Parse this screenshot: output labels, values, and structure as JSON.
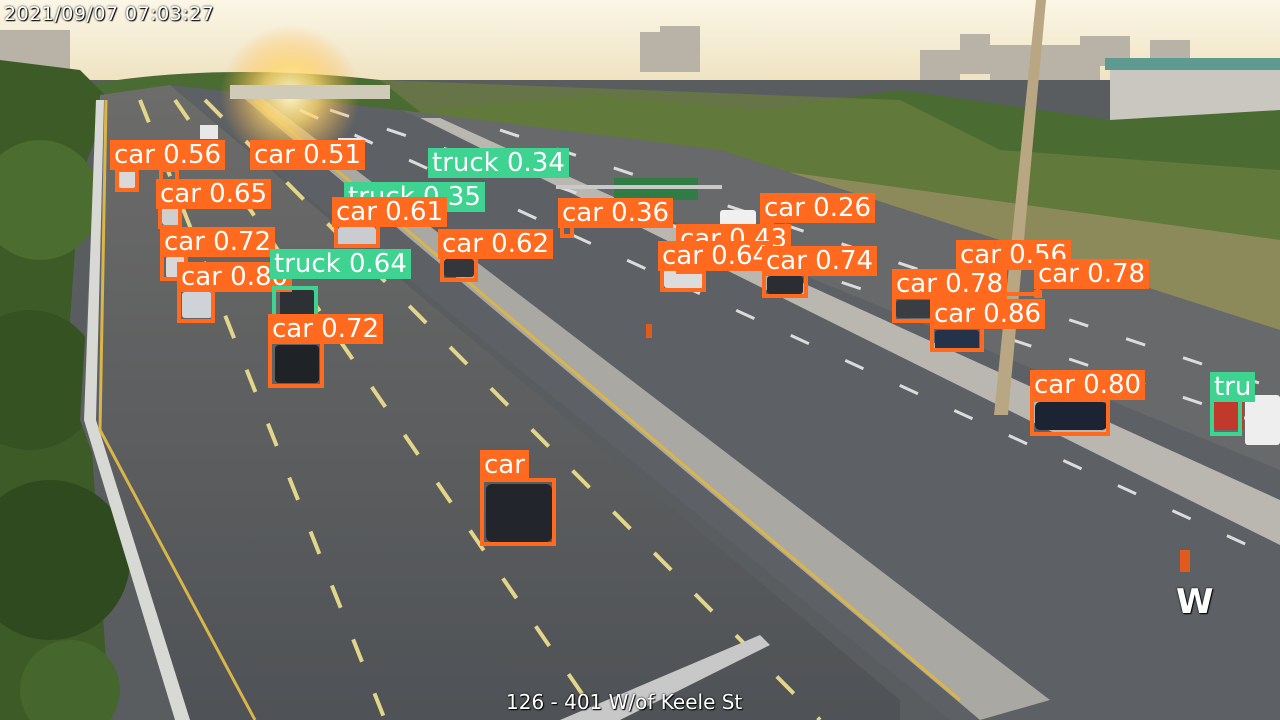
{
  "overlay": {
    "timestamp": "2021/09/07   07:03:27",
    "camera_caption": "126 - 401 W/of Keele St",
    "direction_marker": "W"
  },
  "colors": {
    "car": "#ff6a1f",
    "truck": "#3ed391",
    "road": "#5b5e62",
    "sky": "#f3ecd8",
    "foliage": "#3d5a28"
  },
  "detections": [
    {
      "label": "car 0.56",
      "class": "car"
    },
    {
      "label": "car 0.51",
      "class": "car"
    },
    {
      "label": "car 0.65",
      "class": "car"
    },
    {
      "label": "car 0.72",
      "class": "car"
    },
    {
      "label": "car 0.80",
      "class": "car"
    },
    {
      "label": "truck 0.64",
      "class": "truck"
    },
    {
      "label": "car 0.72",
      "class": "car"
    },
    {
      "label": "truck 0.34",
      "class": "truck"
    },
    {
      "label": "truck 0.35",
      "class": "truck"
    },
    {
      "label": "car 0.61",
      "class": "car"
    },
    {
      "label": "car 0.62",
      "class": "car"
    },
    {
      "label": "car 0.36",
      "class": "car"
    },
    {
      "label": "car 0.26",
      "class": "car"
    },
    {
      "label": "car 0.43",
      "class": "car"
    },
    {
      "label": "car 0.64",
      "class": "car"
    },
    {
      "label": "car 0.74",
      "class": "car"
    },
    {
      "label": "car 0.56",
      "class": "car"
    },
    {
      "label": "car 0.78",
      "class": "car"
    },
    {
      "label": "car 0.78",
      "class": "car"
    },
    {
      "label": "car 0.86",
      "class": "car"
    },
    {
      "label": "car 0.80",
      "class": "car"
    },
    {
      "label": "car",
      "class": "car"
    },
    {
      "label": "tru",
      "class": "truck"
    }
  ]
}
